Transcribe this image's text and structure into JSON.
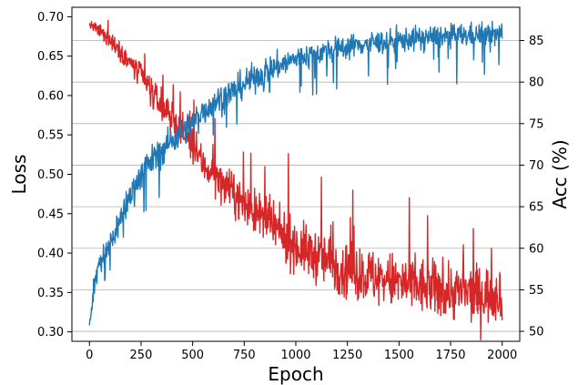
{
  "chart_data": {
    "type": "line",
    "xlabel": "Epoch",
    "ylabel_left": "Loss",
    "ylabel_right": "Acc (%)",
    "xlim": [
      -85,
      2085
    ],
    "ylim_left": [
      0.288,
      0.712
    ],
    "ylim_right": [
      48.8,
      89.0
    ],
    "x_ticks": [
      0,
      250,
      500,
      750,
      1000,
      1250,
      1500,
      1750,
      2000
    ],
    "y_ticks_left": [
      0.3,
      0.35,
      0.4,
      0.45,
      0.5,
      0.55,
      0.6,
      0.65,
      0.7
    ],
    "y_ticks_left_labels": [
      "0.30",
      "0.35",
      "0.40",
      "0.45",
      "0.50",
      "0.55",
      "0.60",
      "0.65",
      "0.70"
    ],
    "y_ticks_right": [
      50,
      55,
      60,
      65,
      70,
      75,
      80,
      85
    ],
    "grid": "horizontal, right axis",
    "series": [
      {
        "axis": "left",
        "color": "#d62728",
        "x": [
          0,
          50,
          100,
          150,
          200,
          250,
          300,
          350,
          400,
          450,
          500,
          550,
          600,
          650,
          700,
          750,
          800,
          850,
          900,
          950,
          1000,
          1100,
          1200,
          1300,
          1400,
          1500,
          1600,
          1700,
          1800,
          1900,
          2000
        ],
        "y": [
          0.69,
          0.681,
          0.67,
          0.658,
          0.64,
          0.625,
          0.605,
          0.585,
          0.567,
          0.553,
          0.535,
          0.513,
          0.5,
          0.488,
          0.475,
          0.462,
          0.452,
          0.441,
          0.43,
          0.419,
          0.409,
          0.396,
          0.385,
          0.375,
          0.368,
          0.362,
          0.357,
          0.353,
          0.35,
          0.347,
          0.35
        ],
        "noise": [
          0.004,
          0.006,
          0.008,
          0.01,
          0.012,
          0.013,
          0.014,
          0.014,
          0.014,
          0.014,
          0.015,
          0.016,
          0.017,
          0.017,
          0.018,
          0.019,
          0.02,
          0.02,
          0.021,
          0.022,
          0.023,
          0.024,
          0.025,
          0.025,
          0.025,
          0.026,
          0.026,
          0.026,
          0.026,
          0.026,
          0.025
        ]
      },
      {
        "axis": "right",
        "color": "#1f77b4",
        "x": [
          0,
          25,
          50,
          75,
          100,
          150,
          200,
          250,
          300,
          350,
          400,
          450,
          500,
          550,
          600,
          650,
          700,
          750,
          800,
          850,
          900,
          950,
          1000,
          1100,
          1200,
          1300,
          1400,
          1500,
          1600,
          1700,
          1800,
          1900,
          2000
        ],
        "y": [
          50.5,
          56.0,
          58.5,
          59.0,
          60.5,
          63.5,
          66.5,
          69.0,
          70.5,
          71.8,
          73.0,
          74.0,
          75.0,
          76.5,
          77.5,
          78.3,
          79.0,
          79.8,
          80.5,
          81.2,
          81.8,
          82.3,
          82.8,
          83.5,
          84.0,
          84.5,
          84.8,
          85.0,
          85.3,
          85.5,
          85.6,
          85.7,
          85.8
        ],
        "noise": [
          0.4,
          1.0,
          1.2,
          1.2,
          1.2,
          1.3,
          1.3,
          1.3,
          1.3,
          1.3,
          1.3,
          1.3,
          1.3,
          1.3,
          1.2,
          1.2,
          1.2,
          1.2,
          1.2,
          1.2,
          1.2,
          1.1,
          1.1,
          1.0,
          1.0,
          1.0,
          1.0,
          1.0,
          1.0,
          1.0,
          1.0,
          1.0,
          1.0
        ]
      }
    ]
  }
}
